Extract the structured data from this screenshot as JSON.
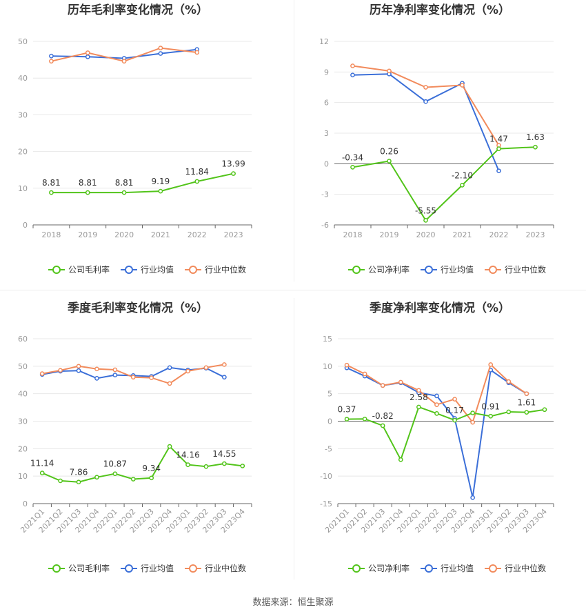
{
  "footer": "数据来源：恒生聚源",
  "colors": {
    "company": "#52c41a",
    "avg": "#3b6fd8",
    "median": "#f28b5c",
    "grid": "#e8e8e8",
    "axis": "#999999"
  },
  "chart_data": [
    {
      "type": "line",
      "title": "历年毛利率变化情况（%）",
      "categories": [
        "2018",
        "2019",
        "2020",
        "2021",
        "2022",
        "2023"
      ],
      "ylim": [
        0,
        50
      ],
      "yticks": [
        "0",
        "10",
        "20",
        "30",
        "40",
        "50"
      ],
      "grid": true,
      "legend_position": "bottom",
      "series": [
        {
          "name": "公司毛利率",
          "values": [
            8.81,
            8.81,
            8.81,
            9.19,
            11.84,
            13.99
          ]
        },
        {
          "name": "行业均值",
          "values": [
            46.0,
            45.8,
            45.4,
            46.7,
            47.8,
            null
          ]
        },
        {
          "name": "行业中位数",
          "values": [
            44.6,
            46.9,
            44.6,
            48.2,
            47.0,
            null
          ]
        }
      ],
      "data_labels": [
        {
          "index": 0,
          "text": "8.81"
        },
        {
          "index": 1,
          "text": "8.81"
        },
        {
          "index": 2,
          "text": "8.81"
        },
        {
          "index": 3,
          "text": "9.19"
        },
        {
          "index": 4,
          "text": "11.84"
        },
        {
          "index": 5,
          "text": "13.99"
        }
      ]
    },
    {
      "type": "line",
      "title": "历年净利率变化情况（%）",
      "categories": [
        "2018",
        "2019",
        "2020",
        "2021",
        "2022",
        "2023"
      ],
      "ylim": [
        -6,
        12
      ],
      "yticks": [
        "-6",
        "-3",
        "0",
        "3",
        "6",
        "9",
        "12"
      ],
      "grid": true,
      "legend_position": "bottom",
      "series": [
        {
          "name": "公司净利率",
          "values": [
            -0.34,
            0.26,
            -5.55,
            -2.1,
            1.47,
            1.63
          ]
        },
        {
          "name": "行业均值",
          "values": [
            8.7,
            8.8,
            6.1,
            7.9,
            -0.7,
            null
          ]
        },
        {
          "name": "行业中位数",
          "values": [
            9.6,
            9.1,
            7.5,
            7.7,
            1.8,
            null
          ]
        }
      ],
      "data_labels": [
        {
          "index": 0,
          "text": "-0.34"
        },
        {
          "index": 1,
          "text": "0.26"
        },
        {
          "index": 2,
          "text": "-5.55"
        },
        {
          "index": 3,
          "text": "-2.10"
        },
        {
          "index": 4,
          "text": "1.47"
        },
        {
          "index": 5,
          "text": "1.63"
        }
      ]
    },
    {
      "type": "line",
      "title": "季度毛利率变化情况（%）",
      "categories": [
        "2021Q1",
        "2021Q2",
        "2021Q3",
        "2021Q4",
        "2022Q1",
        "2022Q2",
        "2022Q3",
        "2022Q4",
        "2023Q1",
        "2023Q2",
        "2023Q3",
        "2023Q4"
      ],
      "ylim": [
        0,
        60
      ],
      "yticks": [
        "0",
        "10",
        "20",
        "30",
        "40",
        "50",
        "60"
      ],
      "grid": true,
      "legend_position": "bottom",
      "series": [
        {
          "name": "公司毛利率",
          "values": [
            11.14,
            8.3,
            7.86,
            9.6,
            10.87,
            8.9,
            9.34,
            20.8,
            14.16,
            13.5,
            14.55,
            13.7
          ]
        },
        {
          "name": "行业均值",
          "values": [
            47.0,
            48.2,
            48.4,
            45.6,
            46.8,
            46.6,
            46.3,
            49.5,
            48.6,
            49.3,
            46.0,
            null
          ]
        },
        {
          "name": "行业中位数",
          "values": [
            47.3,
            48.5,
            50.0,
            49.0,
            48.7,
            46.0,
            45.8,
            43.7,
            48.2,
            49.5,
            50.6,
            null
          ]
        }
      ],
      "data_labels": [
        {
          "index": 0,
          "text": "11.14"
        },
        {
          "index": 2,
          "text": "7.86"
        },
        {
          "index": 4,
          "text": "10.87"
        },
        {
          "index": 6,
          "text": "9.34"
        },
        {
          "index": 8,
          "text": "14.16"
        },
        {
          "index": 10,
          "text": "14.55"
        }
      ]
    },
    {
      "type": "line",
      "title": "季度净利率变化情况（%）",
      "categories": [
        "2021Q1",
        "2021Q2",
        "2021Q3",
        "2021Q4",
        "2022Q1",
        "2022Q2",
        "2022Q3",
        "2022Q4",
        "2023Q1",
        "2023Q2",
        "2023Q3",
        "2023Q4"
      ],
      "ylim": [
        -15,
        15
      ],
      "yticks": [
        "-15",
        "-10",
        "-5",
        "0",
        "5",
        "10",
        "15"
      ],
      "grid": true,
      "legend_position": "bottom",
      "series": [
        {
          "name": "公司净利率",
          "values": [
            0.37,
            0.4,
            -0.82,
            -7.0,
            2.58,
            1.4,
            0.17,
            1.5,
            0.91,
            1.7,
            1.61,
            2.1
          ]
        },
        {
          "name": "行业均值",
          "values": [
            9.7,
            8.2,
            6.5,
            7.0,
            5.2,
            4.6,
            0.5,
            -13.9,
            9.3,
            7.0,
            5.0,
            null
          ]
        },
        {
          "name": "行业中位数",
          "values": [
            10.2,
            8.6,
            6.5,
            7.1,
            5.6,
            3.0,
            4.0,
            -0.2,
            10.3,
            7.2,
            5.0,
            null
          ]
        }
      ],
      "data_labels": [
        {
          "index": 0,
          "text": "0.37"
        },
        {
          "index": 2,
          "text": "-0.82"
        },
        {
          "index": 4,
          "text": "2.58"
        },
        {
          "index": 6,
          "text": "0.17"
        },
        {
          "index": 8,
          "text": "0.91"
        },
        {
          "index": 10,
          "text": "1.61"
        }
      ]
    }
  ]
}
